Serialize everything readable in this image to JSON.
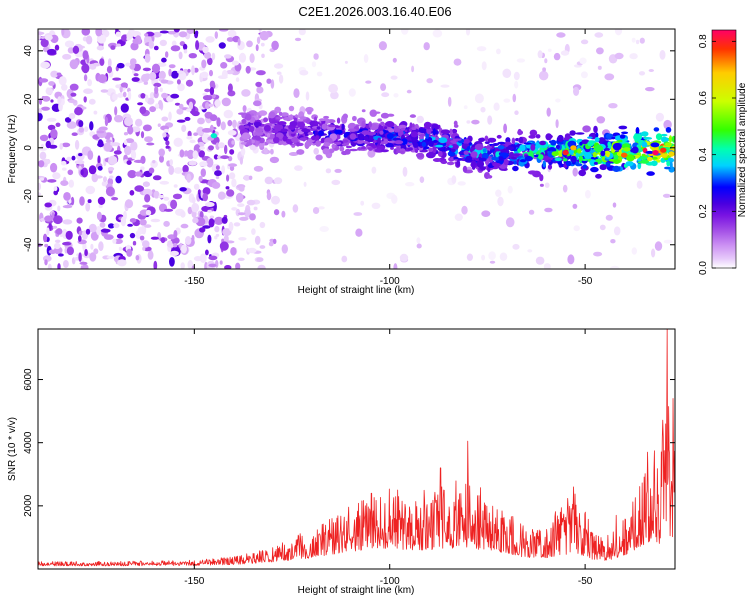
{
  "figure_title": "C2E1.2026.003.16.40.E06",
  "colors": {
    "snr_line": "#ee2222",
    "axes": "#000000",
    "background": "#ffffff",
    "colormap": [
      "#ffffff",
      "#e6c8fa",
      "#c98cf2",
      "#a24de6",
      "#7a14e2",
      "#4a00e0",
      "#0000ff",
      "#00d2ff",
      "#00ffb0",
      "#33ff00",
      "#ccff00",
      "#ffcc00",
      "#ff3300",
      "#ff0066"
    ]
  },
  "chart_data": [
    {
      "type": "heatmap",
      "title": "",
      "xlabel": "Height of straight line (km)",
      "ylabel": "Frequency (Hz)",
      "xlim": [
        -190,
        -27
      ],
      "ylim": [
        -50,
        49
      ],
      "xticks": [
        -150,
        -100,
        -50
      ],
      "xtick_labels": [
        "-150",
        "-100",
        "-50"
      ],
      "yticks": [
        -40,
        -20,
        0,
        20,
        40
      ],
      "ytick_labels": [
        "-40",
        "-20",
        "0",
        "20",
        "40"
      ],
      "colorbar": {
        "label": "Normalized spectral amplitude",
        "range": [
          0.0,
          0.84
        ],
        "ticks": [
          0.0,
          0.2,
          0.4,
          0.6,
          0.8
        ],
        "tick_labels": [
          "0.0",
          "0.2",
          "0.4",
          "0.6",
          "0.8"
        ]
      },
      "ridge": {
        "description_points": [
          {
            "height_km": -135,
            "freq_hz": 8,
            "amplitude": 0.22
          },
          {
            "height_km": -120,
            "freq_hz": 6,
            "amplitude": 0.26
          },
          {
            "height_km": -105,
            "freq_hz": 5,
            "amplitude": 0.32
          },
          {
            "height_km": -90,
            "freq_hz": 3,
            "amplitude": 0.36
          },
          {
            "height_km": -75,
            "freq_hz": -3,
            "amplitude": 0.4
          },
          {
            "height_km": -60,
            "freq_hz": -2,
            "amplitude": 0.5
          },
          {
            "height_km": -45,
            "freq_hz": -2,
            "amplitude": 0.64
          },
          {
            "height_km": -30,
            "freq_hz": -1,
            "amplitude": 0.82
          }
        ]
      },
      "hotspots": [
        {
          "height_km": -145,
          "freq_hz": 5,
          "amplitude": 0.4
        },
        {
          "height_km": -55,
          "freq_hz": -2,
          "amplitude": 0.8
        },
        {
          "height_km": -53,
          "freq_hz": 0,
          "amplitude": 0.7
        },
        {
          "height_km": -40,
          "freq_hz": -3,
          "amplitude": 0.75
        },
        {
          "height_km": -32,
          "freq_hz": -2,
          "amplitude": 0.84
        },
        {
          "height_km": -30,
          "freq_hz": -1,
          "amplitude": 0.78
        }
      ]
    },
    {
      "type": "line",
      "title": "",
      "xlabel": "Height of straight line (km)",
      "ylabel": "SNR (10 * v/v)",
      "xlim": [
        -190,
        -27
      ],
      "ylim": [
        0,
        7600
      ],
      "xticks": [
        -150,
        -100,
        -50
      ],
      "xtick_labels": [
        "-150",
        "-100",
        "-50"
      ],
      "yticks": [
        2000,
        4000,
        6000
      ],
      "ytick_labels": [
        "2000",
        "4000",
        "6000"
      ],
      "series": [
        {
          "name": "SNR",
          "envelope": {
            "x": [
              -190,
              -170,
              -150,
              -140,
              -130,
              -120,
              -110,
              -104,
              -100,
              -95,
              -90,
              -85,
              -80,
              -75,
              -70,
              -65,
              -60,
              -56,
              -52,
              -48,
              -45,
              -40,
              -36,
              -33,
              -31,
              -30,
              -29,
              -28,
              -27
            ],
            "base": [
              100,
              100,
              110,
              140,
              220,
              350,
              550,
              650,
              650,
              600,
              600,
              650,
              650,
              600,
              500,
              350,
              350,
              450,
              500,
              300,
              250,
              400,
              700,
              900,
              800,
              1200,
              1500,
              800,
              1200
            ],
            "amp": [
              100,
              100,
              120,
              180,
              350,
              700,
              1100,
              1300,
              1400,
              1250,
              1400,
              1500,
              1600,
              1350,
              1000,
              650,
              650,
              1250,
              1450,
              650,
              500,
              900,
              1600,
              2300,
              2000,
              3000,
              3500,
              2000,
              3000
            ]
          },
          "spikes": [
            {
              "x": -80,
              "y": 4050
            },
            {
              "x": -87,
              "y": 3200
            },
            {
              "x": -98,
              "y": 2500
            },
            {
              "x": -53,
              "y": 2600
            },
            {
              "x": -42,
              "y": 1700
            },
            {
              "x": -34,
              "y": 3700
            },
            {
              "x": -30,
              "y": 4200
            },
            {
              "x": -29,
              "y": 7600
            },
            {
              "x": -27.5,
              "y": 5400
            }
          ]
        }
      ]
    }
  ]
}
